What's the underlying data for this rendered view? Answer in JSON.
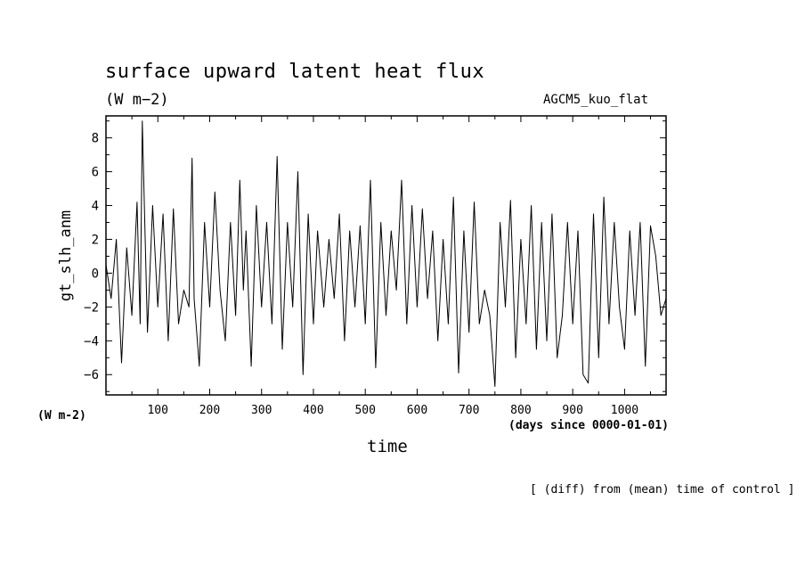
{
  "chart_data": {
    "type": "line",
    "title": "surface upward latent heat flux",
    "units": "(W m−2)",
    "experiment": "AGCM5_kuo_flat",
    "ylabel": "gt_slh_anm",
    "yunit": "(W m-2)",
    "xlabel": "time",
    "xunit": "(days since 0000-01-01)",
    "note": "[ (diff) from (mean) time of control ]",
    "xlim": [
      0,
      1080
    ],
    "ylim": [
      -7.2,
      9.3
    ],
    "xticks": [
      100,
      200,
      300,
      400,
      500,
      600,
      700,
      800,
      900,
      1000
    ],
    "xtick_labels": [
      "100",
      "200",
      "300",
      "400",
      "500",
      "600",
      "700",
      "800",
      "900",
      "1000"
    ],
    "yticks": [
      -6,
      -4,
      -2,
      0,
      2,
      4,
      6,
      8
    ],
    "ytick_labels": [
      "−6",
      "−4",
      "−2",
      "0",
      "2",
      "4",
      "6",
      "8"
    ],
    "series": [
      {
        "x": [
          0,
          10,
          20,
          30,
          40,
          50,
          60,
          66,
          70,
          80,
          90,
          100,
          110,
          120,
          130,
          140,
          150,
          160,
          166,
          170,
          180,
          190,
          200,
          210,
          220,
          230,
          240,
          250,
          258,
          265,
          270,
          280,
          290,
          300,
          310,
          320,
          330,
          340,
          350,
          360,
          370,
          380,
          390,
          400,
          408,
          420,
          430,
          440,
          450,
          460,
          470,
          480,
          490,
          500,
          510,
          520,
          530,
          540,
          550,
          560,
          570,
          580,
          590,
          600,
          610,
          620,
          630,
          640,
          650,
          660,
          670,
          680,
          690,
          700,
          710,
          720,
          730,
          740,
          750,
          760,
          770,
          780,
          790,
          800,
          810,
          820,
          830,
          840,
          850,
          860,
          870,
          880,
          890,
          900,
          910,
          920,
          930,
          940,
          950,
          960,
          970,
          980,
          990,
          1000,
          1010,
          1020,
          1030,
          1040,
          1050,
          1060,
          1070,
          1080
        ],
        "y": [
          0.5,
          -1.5,
          2.0,
          -5.3,
          1.5,
          -2.5,
          4.2,
          -3.0,
          9.0,
          -3.5,
          4.0,
          -2.0,
          3.5,
          -4.0,
          3.8,
          -3.0,
          -1.0,
          -2.0,
          6.8,
          -1.5,
          -5.5,
          3.0,
          -2.0,
          4.8,
          -1.0,
          -4.0,
          3.0,
          -2.5,
          5.5,
          -1.0,
          2.5,
          -5.5,
          4.0,
          -2.0,
          3.0,
          -3.0,
          6.9,
          -4.5,
          3.0,
          -2.0,
          6.0,
          -6.0,
          3.5,
          -3.0,
          2.5,
          -2.0,
          2.0,
          -1.5,
          3.5,
          -4.0,
          2.5,
          -2.0,
          2.8,
          -3.0,
          5.5,
          -5.6,
          3.0,
          -2.5,
          2.5,
          -1.0,
          5.5,
          -3.0,
          4.0,
          -2.0,
          3.8,
          -1.5,
          2.5,
          -4.0,
          2.0,
          -3.0,
          4.5,
          -5.9,
          2.5,
          -3.5,
          4.2,
          -3.0,
          -1.0,
          -2.5,
          -6.7,
          3.0,
          -2.0,
          4.3,
          -5.0,
          2.0,
          -3.0,
          4.0,
          -4.5,
          3.0,
          -4.0,
          3.5,
          -5.0,
          -2.5,
          3.0,
          -3.0,
          2.5,
          -6.0,
          -6.5,
          3.5,
          -5.0,
          4.5,
          -3.0,
          3.0,
          -2.0,
          -4.5,
          2.5,
          -2.5,
          3.0,
          -5.5,
          2.8,
          1.0,
          -2.5,
          -1.5
        ]
      }
    ]
  }
}
